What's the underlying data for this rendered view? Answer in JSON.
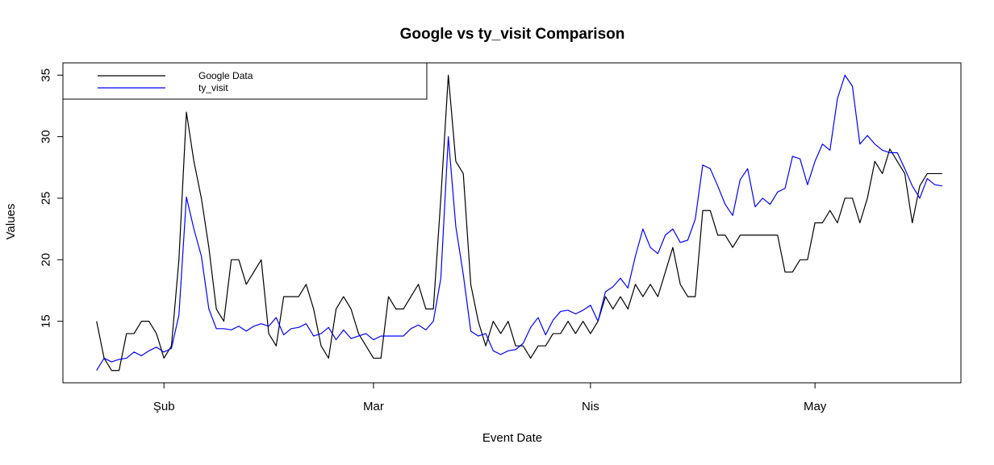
{
  "chart_data": {
    "type": "line",
    "title": "Google vs ty_visit Comparison",
    "xlabel": "Event Date",
    "ylabel": "Values",
    "x_ticks": [
      {
        "day": 9,
        "label": "Şub"
      },
      {
        "day": 37,
        "label": "Mar"
      },
      {
        "day": 66,
        "label": "Nis"
      },
      {
        "day": 96,
        "label": "May"
      }
    ],
    "y_ticks": [
      15,
      20,
      25,
      30,
      35
    ],
    "xlim": [
      -4.5,
      115.5
    ],
    "ylim": [
      10,
      36
    ],
    "legend_position": "top-left",
    "grid": false,
    "series": [
      {
        "name": "Google Data",
        "color": "#000000",
        "values": [
          15,
          12,
          11,
          11,
          14,
          14,
          15,
          15,
          14,
          12,
          13,
          20,
          32,
          28,
          25,
          21,
          16,
          15,
          20,
          20,
          18,
          19,
          20,
          14,
          13,
          17,
          17,
          17,
          18,
          16,
          13,
          12,
          16,
          17,
          16,
          14,
          13,
          12,
          12,
          17,
          16,
          16,
          17,
          18,
          16,
          16,
          25,
          35,
          28,
          27,
          18,
          15,
          13,
          15,
          14,
          15,
          13,
          13,
          12,
          13,
          13,
          14,
          14,
          15,
          14,
          15,
          14,
          15,
          17,
          16,
          17,
          16,
          18,
          17,
          18,
          17,
          19,
          21,
          18,
          17,
          17,
          24,
          24,
          22,
          22,
          21,
          22,
          22,
          22,
          22,
          22,
          22,
          19,
          19,
          20,
          20,
          23,
          23,
          24,
          23,
          25,
          25,
          23,
          25,
          28,
          27,
          29,
          28,
          27,
          23,
          26,
          27,
          27,
          27
        ]
      },
      {
        "name": "ty_visit",
        "color": "#0000ff",
        "values": [
          11,
          12,
          11.7,
          11.9,
          12,
          12.5,
          12.2,
          12.6,
          12.9,
          12.5,
          12.8,
          15.5,
          25.1,
          22.5,
          20.3,
          16,
          14.4,
          14.4,
          14.3,
          14.6,
          14.2,
          14.6,
          14.8,
          14.6,
          15.3,
          13.9,
          14.4,
          14.5,
          14.8,
          13.8,
          14,
          14.5,
          13.5,
          14.3,
          13.6,
          13.8,
          14,
          13.5,
          13.8,
          13.8,
          13.8,
          13.8,
          14.4,
          14.7,
          14.3,
          15,
          18.5,
          30,
          22.7,
          18.8,
          14.2,
          13.8,
          14,
          12.6,
          12.3,
          12.6,
          12.7,
          13.2,
          14.5,
          15.3,
          13.9,
          15.1,
          15.8,
          15.9,
          15.6,
          15.9,
          16.3,
          15,
          17.4,
          17.8,
          18.5,
          17.7,
          20.3,
          22.5,
          21,
          20.5,
          22,
          22.5,
          21.4,
          21.6,
          23.3,
          27.7,
          27.4,
          26,
          24.5,
          23.6,
          26.5,
          27.4,
          24.3,
          25,
          24.5,
          25.5,
          25.8,
          28.4,
          28.2,
          26.1,
          28,
          29.4,
          28.9,
          33.1,
          35,
          34.1,
          29.4,
          30.1,
          29.4,
          28.9,
          28.7,
          28.7,
          27.4,
          26,
          25,
          26.6,
          26.1,
          26
        ]
      }
    ]
  }
}
